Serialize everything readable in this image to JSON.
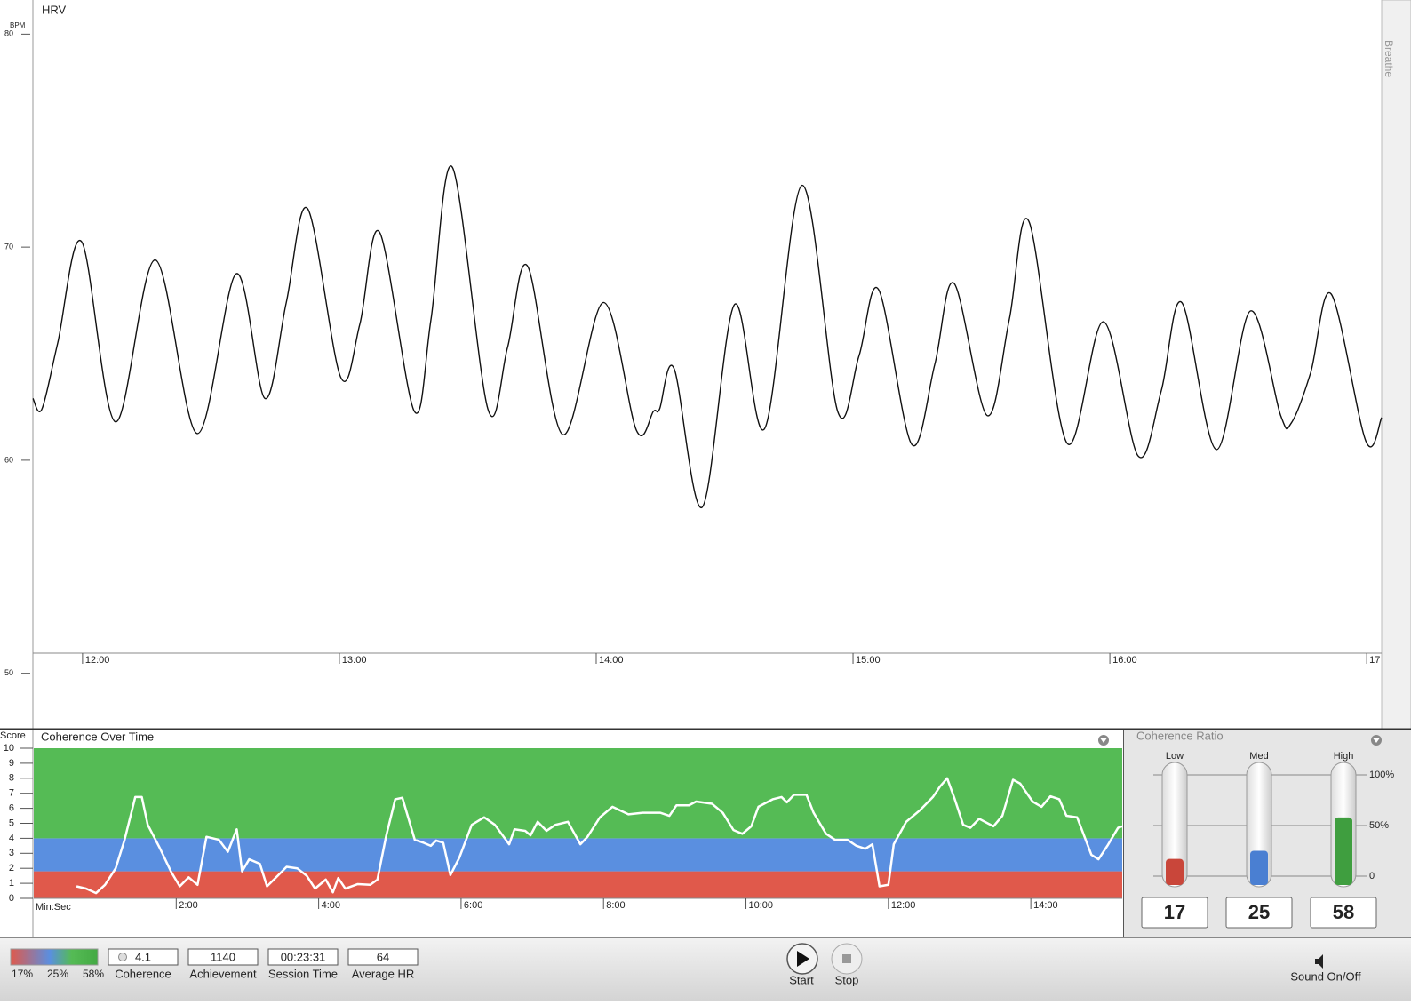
{
  "chart_data": [
    {
      "type": "line",
      "title": "HRV",
      "y_label": "BPM",
      "color": "#111111",
      "x": [
        708.4,
        710.5,
        714.2,
        719.8,
        727.7,
        737.0,
        746.8,
        755.9,
        762.6,
        767.6,
        772.6,
        780.3,
        784.8,
        789.4,
        797.5,
        801.4,
        806.4,
        814.7,
        819.3,
        824.0,
        832.2,
        841.7,
        849.4,
        853.4,
        854.8,
        858.2,
        864.8,
        872.3,
        879.4,
        888.1,
        896.4,
        901.4,
        906.0,
        913.7,
        919.1,
        923.6,
        931.3,
        936.5,
        941.1,
        950.0,
        958.5,
        966.6,
        972.0,
        976.8,
        984.9,
        992.8,
        999.9,
        1002.4,
        1006.9,
        1011.7,
        1019.8,
        1023.5
      ],
      "values": [
        62.9,
        62.4,
        65.5,
        70.25,
        61.8,
        69.4,
        61.25,
        68.75,
        62.9,
        67.4,
        71.8,
        63.9,
        66.4,
        70.7,
        62.3,
        66.6,
        73.75,
        62.4,
        65.3,
        69.1,
        61.2,
        67.4,
        61.4,
        62.3,
        62.4,
        64.3,
        57.8,
        67.3,
        61.5,
        72.9,
        62.3,
        64.9,
        68.0,
        60.75,
        64.5,
        68.3,
        62.1,
        66.6,
        71.2,
        60.8,
        66.5,
        60.2,
        63.25,
        67.4,
        60.5,
        67.0,
        62.1,
        61.75,
        64.1,
        67.8,
        60.9,
        62.0
      ],
      "xlim": [
        708.4,
        1023.5
      ],
      "ylim": [
        47.4,
        81.6
      ],
      "yticks": [
        50,
        60,
        70,
        80
      ],
      "xticks": [
        {
          "value": 720,
          "label": "12:00"
        },
        {
          "value": 780,
          "label": "13:00"
        },
        {
          "value": 840,
          "label": "14:00"
        },
        {
          "value": 900,
          "label": "15:00"
        },
        {
          "value": 960,
          "label": "16:00"
        },
        {
          "value": 1020,
          "label": "17"
        }
      ],
      "side_tab": "Breathe"
    },
    {
      "type": "line",
      "title": "Coherence Over Time",
      "y_label": "Score",
      "x_label": "Min:Sec",
      "color": "#ffffff",
      "x": [
        36,
        44,
        52.5,
        60,
        69,
        76.5,
        85.5,
        91,
        96,
        106.5,
        115.5,
        123,
        130.5,
        138,
        145.5,
        156,
        163.5,
        171,
        175.5,
        181.5,
        190.5,
        196.5,
        205.5,
        213,
        222,
        230,
        237,
        246,
        252,
        256.5,
        262.5,
        273,
        283.5,
        289.5,
        297,
        304.5,
        310.5,
        321,
        328.5,
        334.5,
        339,
        345,
        351,
        358.5,
        369,
        379.5,
        388.5,
        400.5,
        405,
        414,
        418.5,
        424.5,
        432,
        439.5,
        450,
        460.5,
        466.5,
        477,
        487.5,
        501,
        513,
        528,
        535.5,
        541.5,
        552,
        558,
        571.5,
        580.5,
        589.5,
        597,
        604.5,
        610.5,
        622.5,
        630,
        634.5,
        640.5,
        651,
        657,
        667.5,
        675,
        685.5,
        693,
        700.5,
        706.5,
        712.5,
        720,
        724.5,
        735,
        747,
        757.5,
        763.5,
        769.5,
        775.5,
        783,
        789,
        796.5,
        808.5,
        816,
        825,
        831,
        841.5,
        849,
        856.5,
        864,
        870,
        879,
        891,
        897,
        904.5,
        913.5,
        917
      ],
      "values": [
        0.8,
        0.65,
        0.35,
        0.9,
        2.0,
        3.9,
        6.75,
        6.75,
        4.9,
        3.3,
        1.8,
        0.8,
        1.4,
        0.9,
        4.1,
        3.9,
        3.1,
        4.6,
        1.8,
        2.6,
        2.3,
        0.8,
        1.5,
        2.1,
        2.0,
        1.5,
        0.65,
        1.25,
        0.4,
        1.35,
        0.65,
        0.95,
        0.9,
        1.25,
        4.2,
        6.6,
        6.7,
        3.9,
        3.7,
        3.5,
        3.85,
        3.7,
        1.55,
        2.7,
        4.9,
        5.4,
        4.9,
        3.6,
        4.6,
        4.5,
        4.2,
        5.1,
        4.5,
        4.9,
        5.1,
        3.6,
        4.1,
        5.4,
        6.1,
        5.6,
        5.7,
        5.7,
        5.5,
        6.2,
        6.2,
        6.45,
        6.3,
        5.7,
        4.55,
        4.3,
        4.8,
        6.1,
        6.6,
        6.75,
        6.4,
        6.9,
        6.9,
        5.7,
        4.3,
        3.9,
        3.9,
        3.5,
        3.3,
        3.6,
        0.8,
        0.9,
        3.6,
        5.1,
        5.9,
        6.75,
        7.45,
        8.0,
        6.7,
        4.9,
        4.7,
        5.3,
        4.8,
        5.5,
        7.9,
        7.65,
        6.45,
        6.1,
        6.8,
        6.6,
        5.5,
        5.4,
        2.9,
        2.6,
        3.5,
        4.7,
        4.8
      ],
      "bands": [
        {
          "from": 0,
          "to": 1.8,
          "color": "#e0594b"
        },
        {
          "from": 1.8,
          "to": 4,
          "color": "#5a8fe0"
        },
        {
          "from": 4,
          "to": 10,
          "color": "#55bb55"
        }
      ],
      "xlim": [
        0,
        917
      ],
      "ylim": [
        0,
        10
      ],
      "yticks": [
        0,
        1,
        2,
        3,
        4,
        5,
        6,
        7,
        8,
        9,
        10
      ],
      "xticks": [
        {
          "value": 120,
          "label": "2:00"
        },
        {
          "value": 240,
          "label": "4:00"
        },
        {
          "value": 360,
          "label": "6:00"
        },
        {
          "value": 480,
          "label": "8:00"
        },
        {
          "value": 600,
          "label": "10:00"
        },
        {
          "value": 720,
          "label": "12:00"
        },
        {
          "value": 840,
          "label": "14:00"
        }
      ]
    },
    {
      "type": "gauge",
      "title": "Coherence Ratio",
      "categories": [
        "Low",
        "Med",
        "High"
      ],
      "values": [
        17,
        25,
        58
      ],
      "colors": [
        "#c9463a",
        "#4a7fd2",
        "#3f9e3f"
      ],
      "ylim": [
        0,
        100
      ],
      "yticks": [
        0,
        {
          "value": 50,
          "label": "50%"
        },
        {
          "value": 100,
          "label": "100%"
        }
      ]
    }
  ],
  "toolbar": {
    "ratio_labels": [
      "17%",
      "25%",
      "58%"
    ],
    "fields": [
      {
        "value": 4.1,
        "label": "Coherence"
      },
      {
        "value": 1140,
        "label": "Achievement"
      },
      {
        "value": "00:23:31",
        "label": "Session Time"
      },
      {
        "value": 64,
        "label": "Average HR"
      }
    ],
    "buttons": [
      "Start",
      "Stop"
    ],
    "sound": "Sound On/Off"
  }
}
